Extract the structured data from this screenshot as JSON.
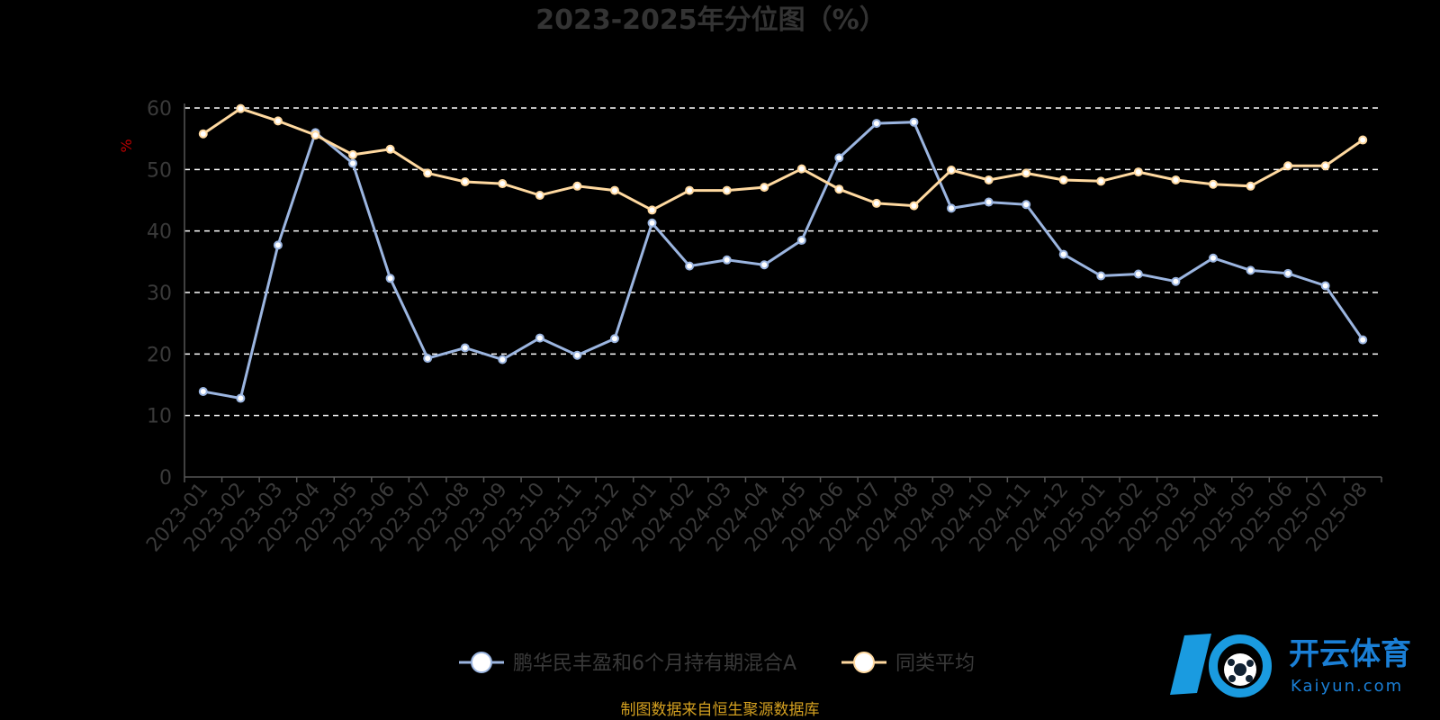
{
  "chart_data": {
    "type": "line",
    "title": "2023-2025年分位图（%）",
    "ylabel": "%",
    "ylim": [
      0,
      60
    ],
    "yticks": [
      0,
      10,
      20,
      30,
      40,
      50,
      60
    ],
    "grid": true,
    "legend_position": "bottom",
    "categories": [
      "2023-01",
      "2023-02",
      "2023-03",
      "2023-04",
      "2023-05",
      "2023-06",
      "2023-07",
      "2023-08",
      "2023-09",
      "2023-10",
      "2023-11",
      "2023-12",
      "2024-01",
      "2024-02",
      "2024-03",
      "2024-04",
      "2024-05",
      "2024-06",
      "2024-07",
      "2024-08",
      "2024-09",
      "2024-10",
      "2024-11",
      "2024-12",
      "2025-01",
      "2025-02",
      "2025-03",
      "2025-04",
      "2025-05",
      "2025-06",
      "2025-07",
      "2025-08"
    ],
    "series": [
      {
        "name": "鹏华民丰盈和6个月持有期混合A",
        "color": "#9bb5e0",
        "values": [
          13.9,
          12.8,
          37.7,
          56.0,
          51.0,
          32.3,
          19.3,
          21.0,
          19.1,
          22.6,
          19.8,
          22.5,
          41.3,
          34.3,
          35.3,
          34.5,
          38.5,
          51.9,
          57.5,
          57.7,
          43.7,
          44.7,
          44.3,
          36.2,
          32.7,
          33.0,
          31.8,
          35.6,
          33.6,
          33.1,
          31.1,
          22.3
        ]
      },
      {
        "name": "同类平均",
        "color": "#ffd9a0",
        "values": [
          55.8,
          59.9,
          57.9,
          55.6,
          52.4,
          53.3,
          49.4,
          48.0,
          47.7,
          45.8,
          47.3,
          46.6,
          43.4,
          46.6,
          46.6,
          47.1,
          50.1,
          46.8,
          44.5,
          44.1,
          49.9,
          48.3,
          49.4,
          48.3,
          48.1,
          49.6,
          48.3,
          47.6,
          47.3,
          50.6,
          50.6,
          54.8
        ]
      }
    ]
  },
  "source_text": "制图数据来自恒生聚源数据库",
  "logo": {
    "name": "开云体育",
    "sub": "Kaiyun.com"
  }
}
